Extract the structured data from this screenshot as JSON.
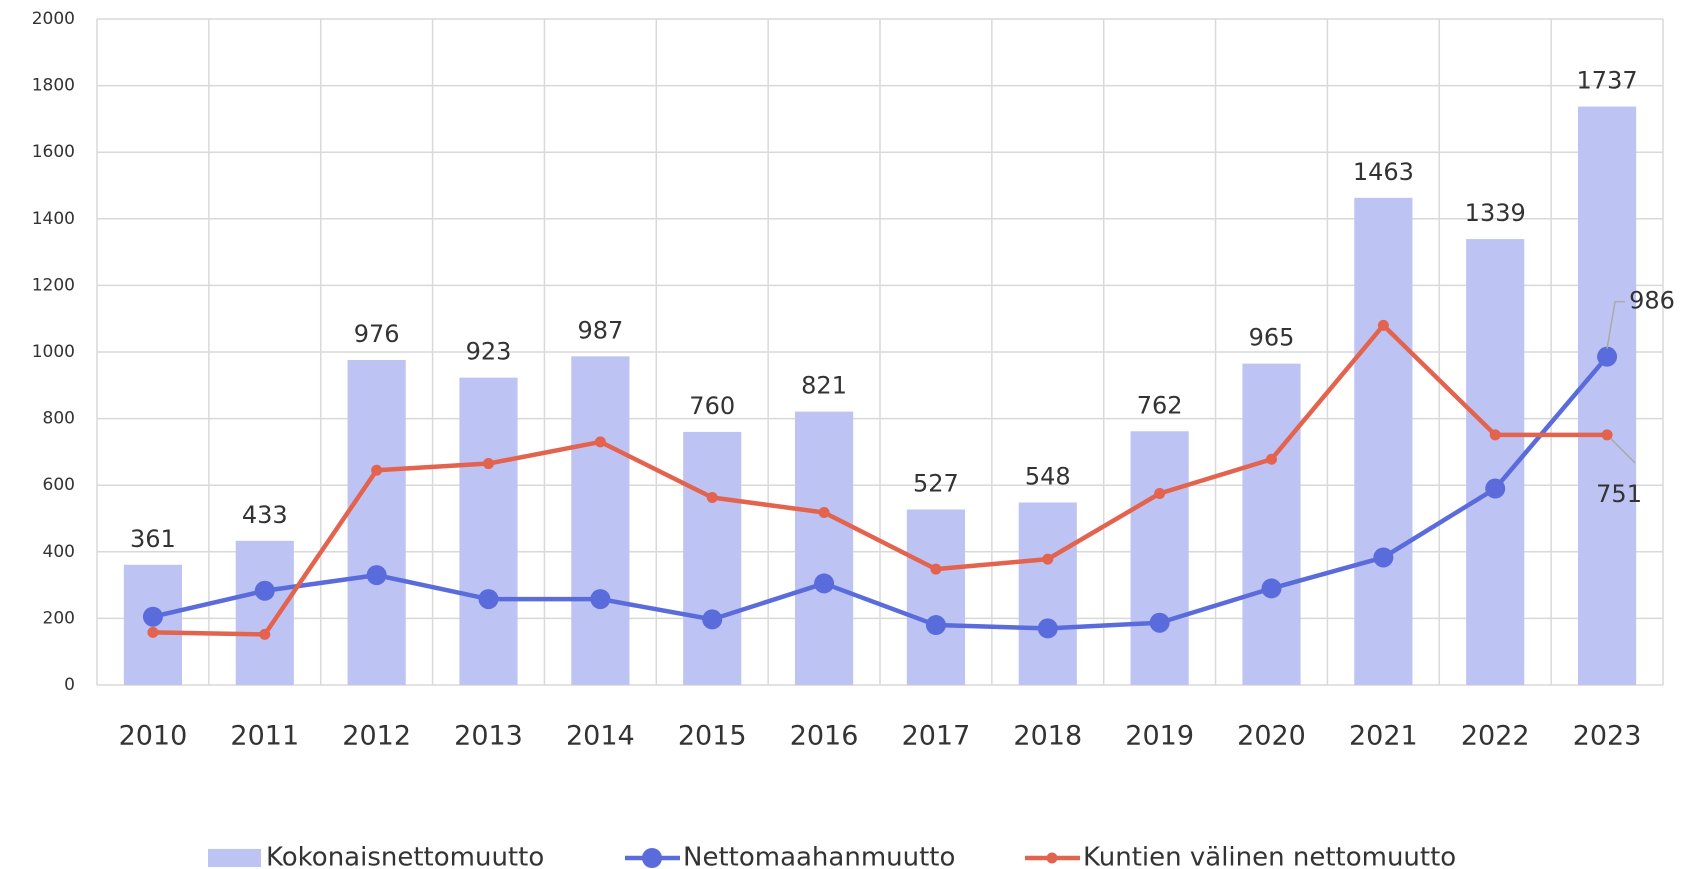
{
  "chart_data": {
    "type": "combo",
    "categories": [
      "2010",
      "2011",
      "2012",
      "2013",
      "2014",
      "2015",
      "2016",
      "2017",
      "2018",
      "2019",
      "2020",
      "2021",
      "2022",
      "2023"
    ],
    "series": [
      {
        "name": "Kokonaisnettomuutto",
        "type": "bar",
        "color": "#bdc4f3",
        "values": [
          361,
          433,
          976,
          923,
          987,
          760,
          821,
          527,
          548,
          762,
          965,
          1463,
          1339,
          1737
        ],
        "labeled_points": [
          0,
          1,
          2,
          3,
          4,
          5,
          6,
          7,
          8,
          9,
          10,
          11,
          12,
          13
        ]
      },
      {
        "name": "Nettomaahanmuutto",
        "type": "line",
        "color": "#5a6cdc",
        "marker": "large",
        "values": [
          205,
          283,
          330,
          258,
          258,
          197,
          305,
          180,
          170,
          187,
          290,
          383,
          590,
          986
        ],
        "labeled_points": [
          13
        ]
      },
      {
        "name": "Kuntien välinen nettomuutto",
        "type": "line",
        "color": "#e3634e",
        "marker": "small",
        "values": [
          158,
          152,
          645,
          665,
          730,
          563,
          518,
          348,
          378,
          575,
          678,
          1080,
          751,
          751
        ],
        "labeled_points": [
          13
        ]
      }
    ],
    "ylim": [
      0,
      2000
    ],
    "yticks": [
      0,
      200,
      400,
      600,
      800,
      1000,
      1200,
      1400,
      1600,
      1800,
      2000
    ],
    "grid": true,
    "legend": "bottom"
  }
}
